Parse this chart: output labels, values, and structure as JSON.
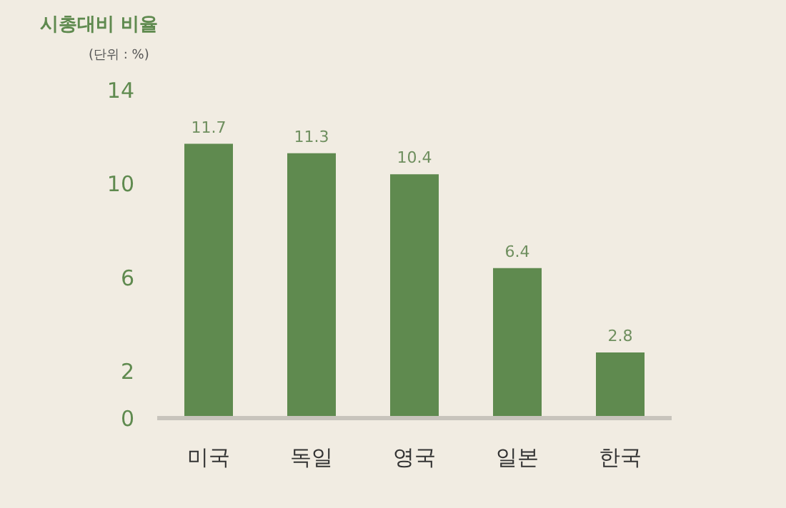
{
  "chart_data": {
    "type": "bar",
    "title": "시총대비 비율",
    "subtitle": "(단위 : %)",
    "categories": [
      "미국",
      "독일",
      "영국",
      "일본",
      "한국"
    ],
    "values": [
      11.7,
      11.3,
      10.4,
      6.4,
      2.8
    ],
    "color": "#5f8a4f",
    "ylim": [
      0,
      14
    ],
    "yticks": [
      0,
      2,
      6,
      10,
      14
    ],
    "grid": false,
    "data_labels": true
  }
}
